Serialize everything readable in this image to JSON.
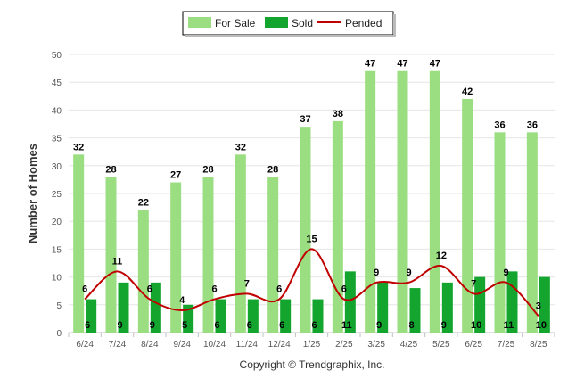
{
  "chart_data": {
    "type": "bar",
    "categories": [
      "6/24",
      "7/24",
      "8/24",
      "9/24",
      "10/24",
      "11/24",
      "12/24",
      "1/25",
      "2/25",
      "3/25",
      "4/25",
      "5/25",
      "6/25",
      "7/25",
      "8/25"
    ],
    "series": [
      {
        "name": "For Sale",
        "type": "bar",
        "color": "#9bde82",
        "values": [
          32,
          28,
          22,
          27,
          28,
          32,
          28,
          37,
          38,
          47,
          47,
          47,
          42,
          36,
          36
        ]
      },
      {
        "name": "Sold",
        "type": "bar",
        "color": "#13a52d",
        "values": [
          6,
          9,
          9,
          5,
          6,
          6,
          6,
          6,
          11,
          9,
          8,
          9,
          10,
          11,
          10
        ]
      },
      {
        "name": "Pended",
        "type": "line",
        "color": "#c00000",
        "values": [
          6,
          11,
          6,
          4,
          6,
          7,
          6,
          15,
          6,
          9,
          9,
          12,
          7,
          9,
          3
        ]
      }
    ],
    "ylabel": "Number of Homes",
    "xlabel": "",
    "ylim": [
      0,
      50
    ],
    "yticks": [
      0,
      5,
      10,
      15,
      20,
      25,
      30,
      35,
      40,
      45,
      50
    ],
    "grid": true,
    "legend_position": "top-center"
  },
  "footer": {
    "copyright": "Copyright © Trendgraphix, Inc."
  }
}
